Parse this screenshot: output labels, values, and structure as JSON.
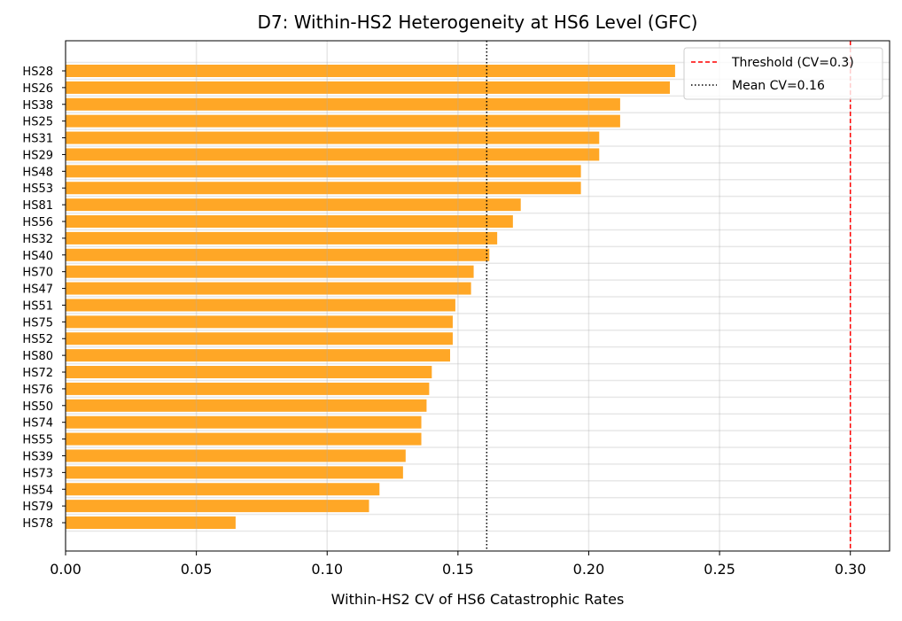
{
  "chart_data": {
    "type": "bar",
    "orientation": "horizontal",
    "title": "D7: Within-HS2 Heterogeneity at HS6 Level (GFC)",
    "xlabel": "Within-HS2 CV of HS6 Catastrophic Rates",
    "ylabel": "",
    "xlim": [
      0,
      0.315
    ],
    "xticks": [
      "0.00",
      "0.05",
      "0.10",
      "0.15",
      "0.20",
      "0.25",
      "0.30"
    ],
    "grid": true,
    "legend_position": "top-right",
    "bar_color": "#FFA726",
    "categories": [
      "HS28",
      "HS26",
      "HS38",
      "HS25",
      "HS31",
      "HS29",
      "HS48",
      "HS53",
      "HS81",
      "HS56",
      "HS32",
      "HS40",
      "HS70",
      "HS47",
      "HS51",
      "HS75",
      "HS52",
      "HS80",
      "HS72",
      "HS76",
      "HS50",
      "HS74",
      "HS55",
      "HS39",
      "HS73",
      "HS54",
      "HS79",
      "HS78"
    ],
    "values": [
      0.233,
      0.231,
      0.212,
      0.212,
      0.204,
      0.204,
      0.197,
      0.197,
      0.174,
      0.171,
      0.165,
      0.162,
      0.156,
      0.155,
      0.149,
      0.148,
      0.148,
      0.147,
      0.14,
      0.139,
      0.138,
      0.136,
      0.136,
      0.13,
      0.129,
      0.12,
      0.116,
      0.065
    ],
    "reference_lines": [
      {
        "label": "Threshold (CV=0.3)",
        "value": 0.3,
        "color": "#FF0000",
        "style": "dashed"
      },
      {
        "label": "Mean CV=0.16",
        "value": 0.161,
        "color": "#000000",
        "style": "dotted"
      }
    ]
  }
}
